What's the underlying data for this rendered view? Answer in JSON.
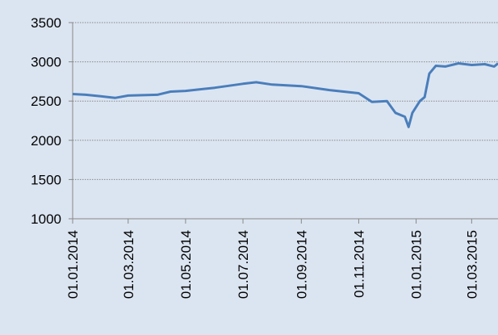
{
  "chart_data": {
    "type": "line",
    "x": [
      "01.01.2014",
      "15.01.2014",
      "01.02.2014",
      "15.02.2014",
      "01.03.2014",
      "01.04.2014",
      "15.04.2014",
      "01.05.2014",
      "01.06.2014",
      "01.07.2014",
      "15.07.2014",
      "01.08.2014",
      "01.09.2014",
      "01.10.2014",
      "01.11.2014",
      "15.11.2014",
      "01.12.2014",
      "10.12.2014",
      "20.12.2014",
      "24.12.2014",
      "28.12.2014",
      "05.01.2015",
      "10.01.2015",
      "15.01.2015",
      "22.01.2015",
      "01.02.2015",
      "15.02.2015",
      "01.03.2015",
      "15.03.2015",
      "25.03.2015",
      "29.03.2015"
    ],
    "series": [
      {
        "name": "",
        "color": "#4a7ebb",
        "values": [
          2590,
          2580,
          2560,
          2540,
          2570,
          2580,
          2620,
          2630,
          2670,
          2720,
          2740,
          2710,
          2690,
          2640,
          2600,
          2490,
          2500,
          2350,
          2300,
          2170,
          2350,
          2500,
          2550,
          2850,
          2950,
          2940,
          2980,
          2960,
          2970,
          2940,
          2980
        ]
      }
    ],
    "xlim": [
      "01.01.2014",
      "29.03.2015"
    ],
    "xticks": [
      "01.01.2014",
      "01.03.2014",
      "01.05.2014",
      "01.07.2014",
      "01.09.2014",
      "01.11.2014",
      "01.01.2015",
      "01.03.2015"
    ],
    "ylim": [
      1000,
      3500
    ],
    "yticks": [
      1000,
      1500,
      2000,
      2500,
      3000,
      3500
    ],
    "grid": true
  }
}
